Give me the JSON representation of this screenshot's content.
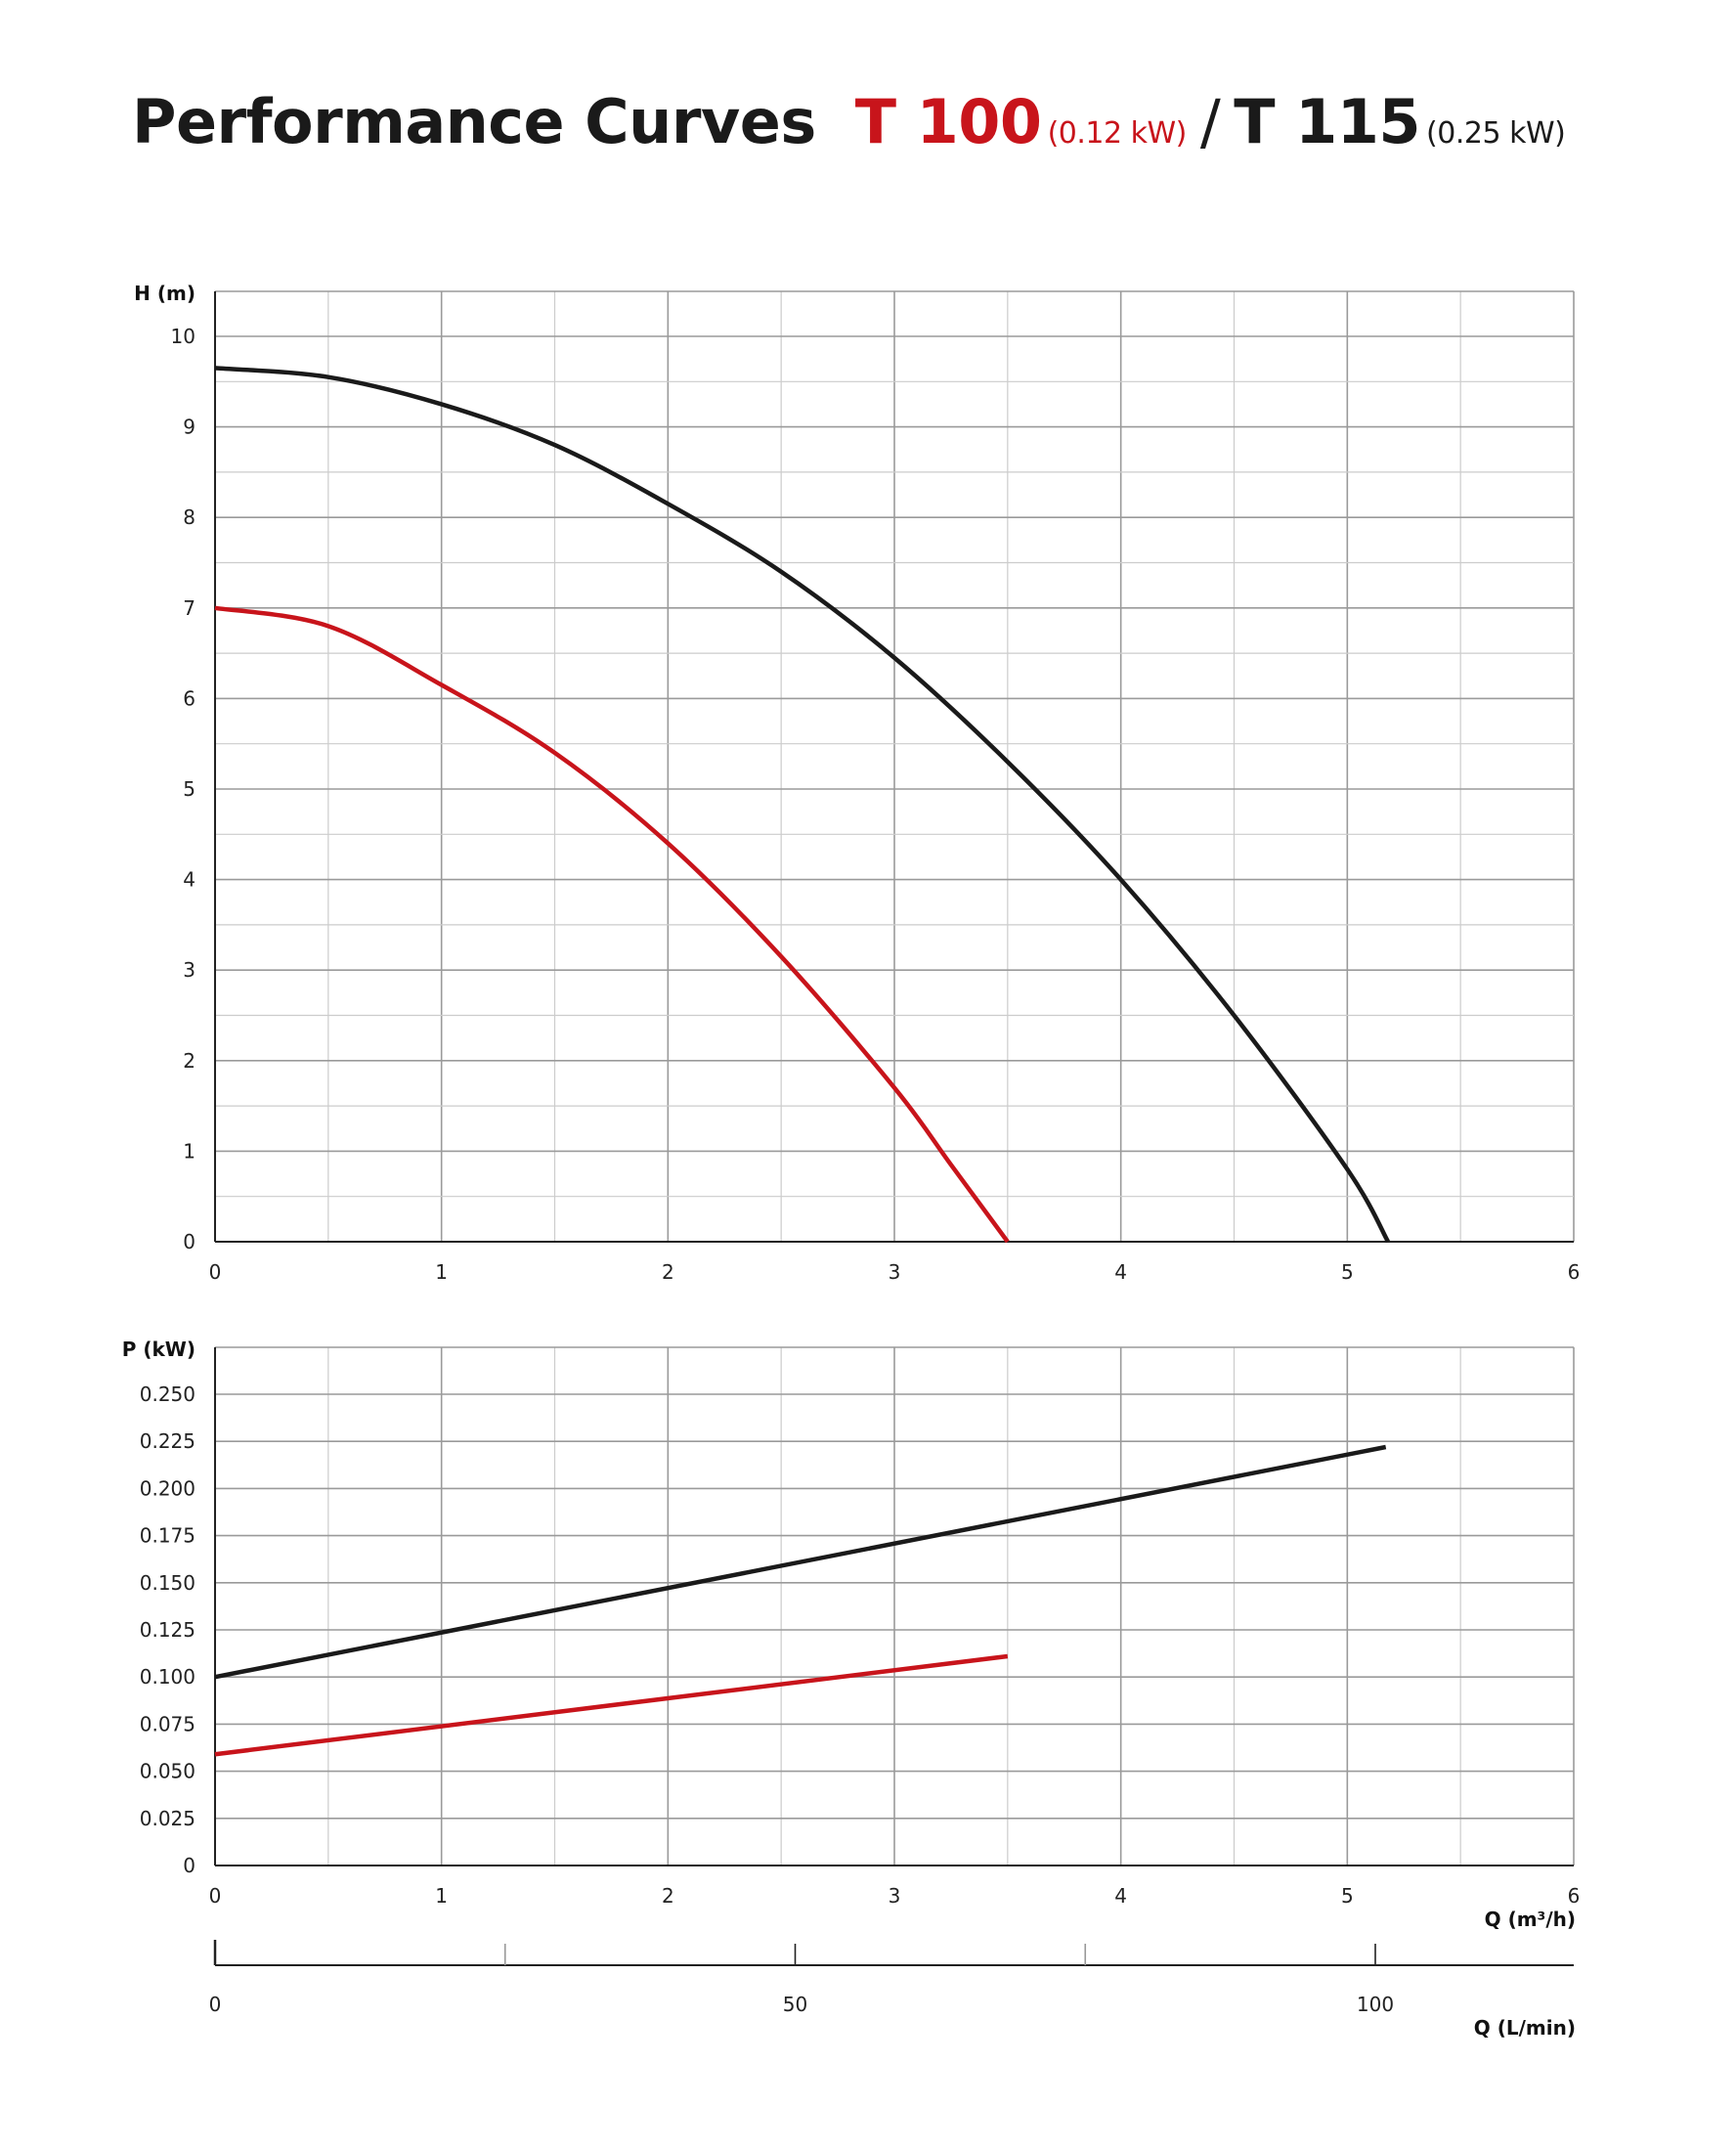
{
  "title": {
    "main": "Performance Curves",
    "model1": "T 100",
    "power1": "(0.12 kW)",
    "separator": "/",
    "model2": "T 115",
    "power2": "(0.25 kW)"
  },
  "colors": {
    "t100": "#c8141b",
    "t115": "#1a1a1a",
    "grid": "#9a9a9a",
    "grid_minor": "#cccccc"
  },
  "chart_data": [
    {
      "type": "line",
      "ylabel": "H (m)",
      "xlim": [
        0,
        6
      ],
      "ylim": [
        0,
        10
      ],
      "x_ticks": [
        "0",
        "1",
        "2",
        "3",
        "4",
        "5",
        "6"
      ],
      "y_ticks": [
        "0",
        "1",
        "2",
        "3",
        "4",
        "5",
        "6",
        "7",
        "8",
        "9",
        "10"
      ],
      "grid": true,
      "series": [
        {
          "name": "T 100",
          "color": "#c8141b",
          "x": [
            0,
            0.5,
            1,
            1.5,
            2,
            2.5,
            3,
            3.25,
            3.5
          ],
          "y": [
            7.0,
            6.8,
            6.15,
            5.4,
            4.4,
            3.15,
            1.7,
            0.85,
            0.0
          ]
        },
        {
          "name": "T 115",
          "color": "#1a1a1a",
          "x": [
            0,
            0.5,
            1,
            1.5,
            2,
            2.5,
            3,
            3.5,
            4,
            4.5,
            5,
            5.18
          ],
          "y": [
            9.65,
            9.55,
            9.25,
            8.8,
            8.15,
            7.4,
            6.45,
            5.3,
            4.0,
            2.5,
            0.8,
            0.0
          ]
        }
      ]
    },
    {
      "type": "line",
      "ylabel": "P (kW)",
      "xlabel": "Q (m³/h)",
      "xlim": [
        0,
        6
      ],
      "ylim": [
        0,
        0.25
      ],
      "x_ticks": [
        "0",
        "1",
        "2",
        "3",
        "4",
        "5",
        "6"
      ],
      "y_ticks": [
        "0",
        "0.025",
        "0.050",
        "0.075",
        "0.100",
        "0.125",
        "0.150",
        "0.175",
        "0.200",
        "0.225",
        "0.250"
      ],
      "grid": true,
      "series": [
        {
          "name": "T 100",
          "color": "#c8141b",
          "x": [
            0,
            3.5
          ],
          "y": [
            0.059,
            0.111
          ]
        },
        {
          "name": "T 115",
          "color": "#1a1a1a",
          "x": [
            0,
            5.17
          ],
          "y": [
            0.1,
            0.222
          ]
        }
      ]
    }
  ],
  "secondary_axis": {
    "xlabel": "Q (L/min)",
    "ticks": [
      "0",
      "50",
      "100"
    ],
    "tick_values": [
      0,
      50,
      100
    ],
    "max": 100
  }
}
